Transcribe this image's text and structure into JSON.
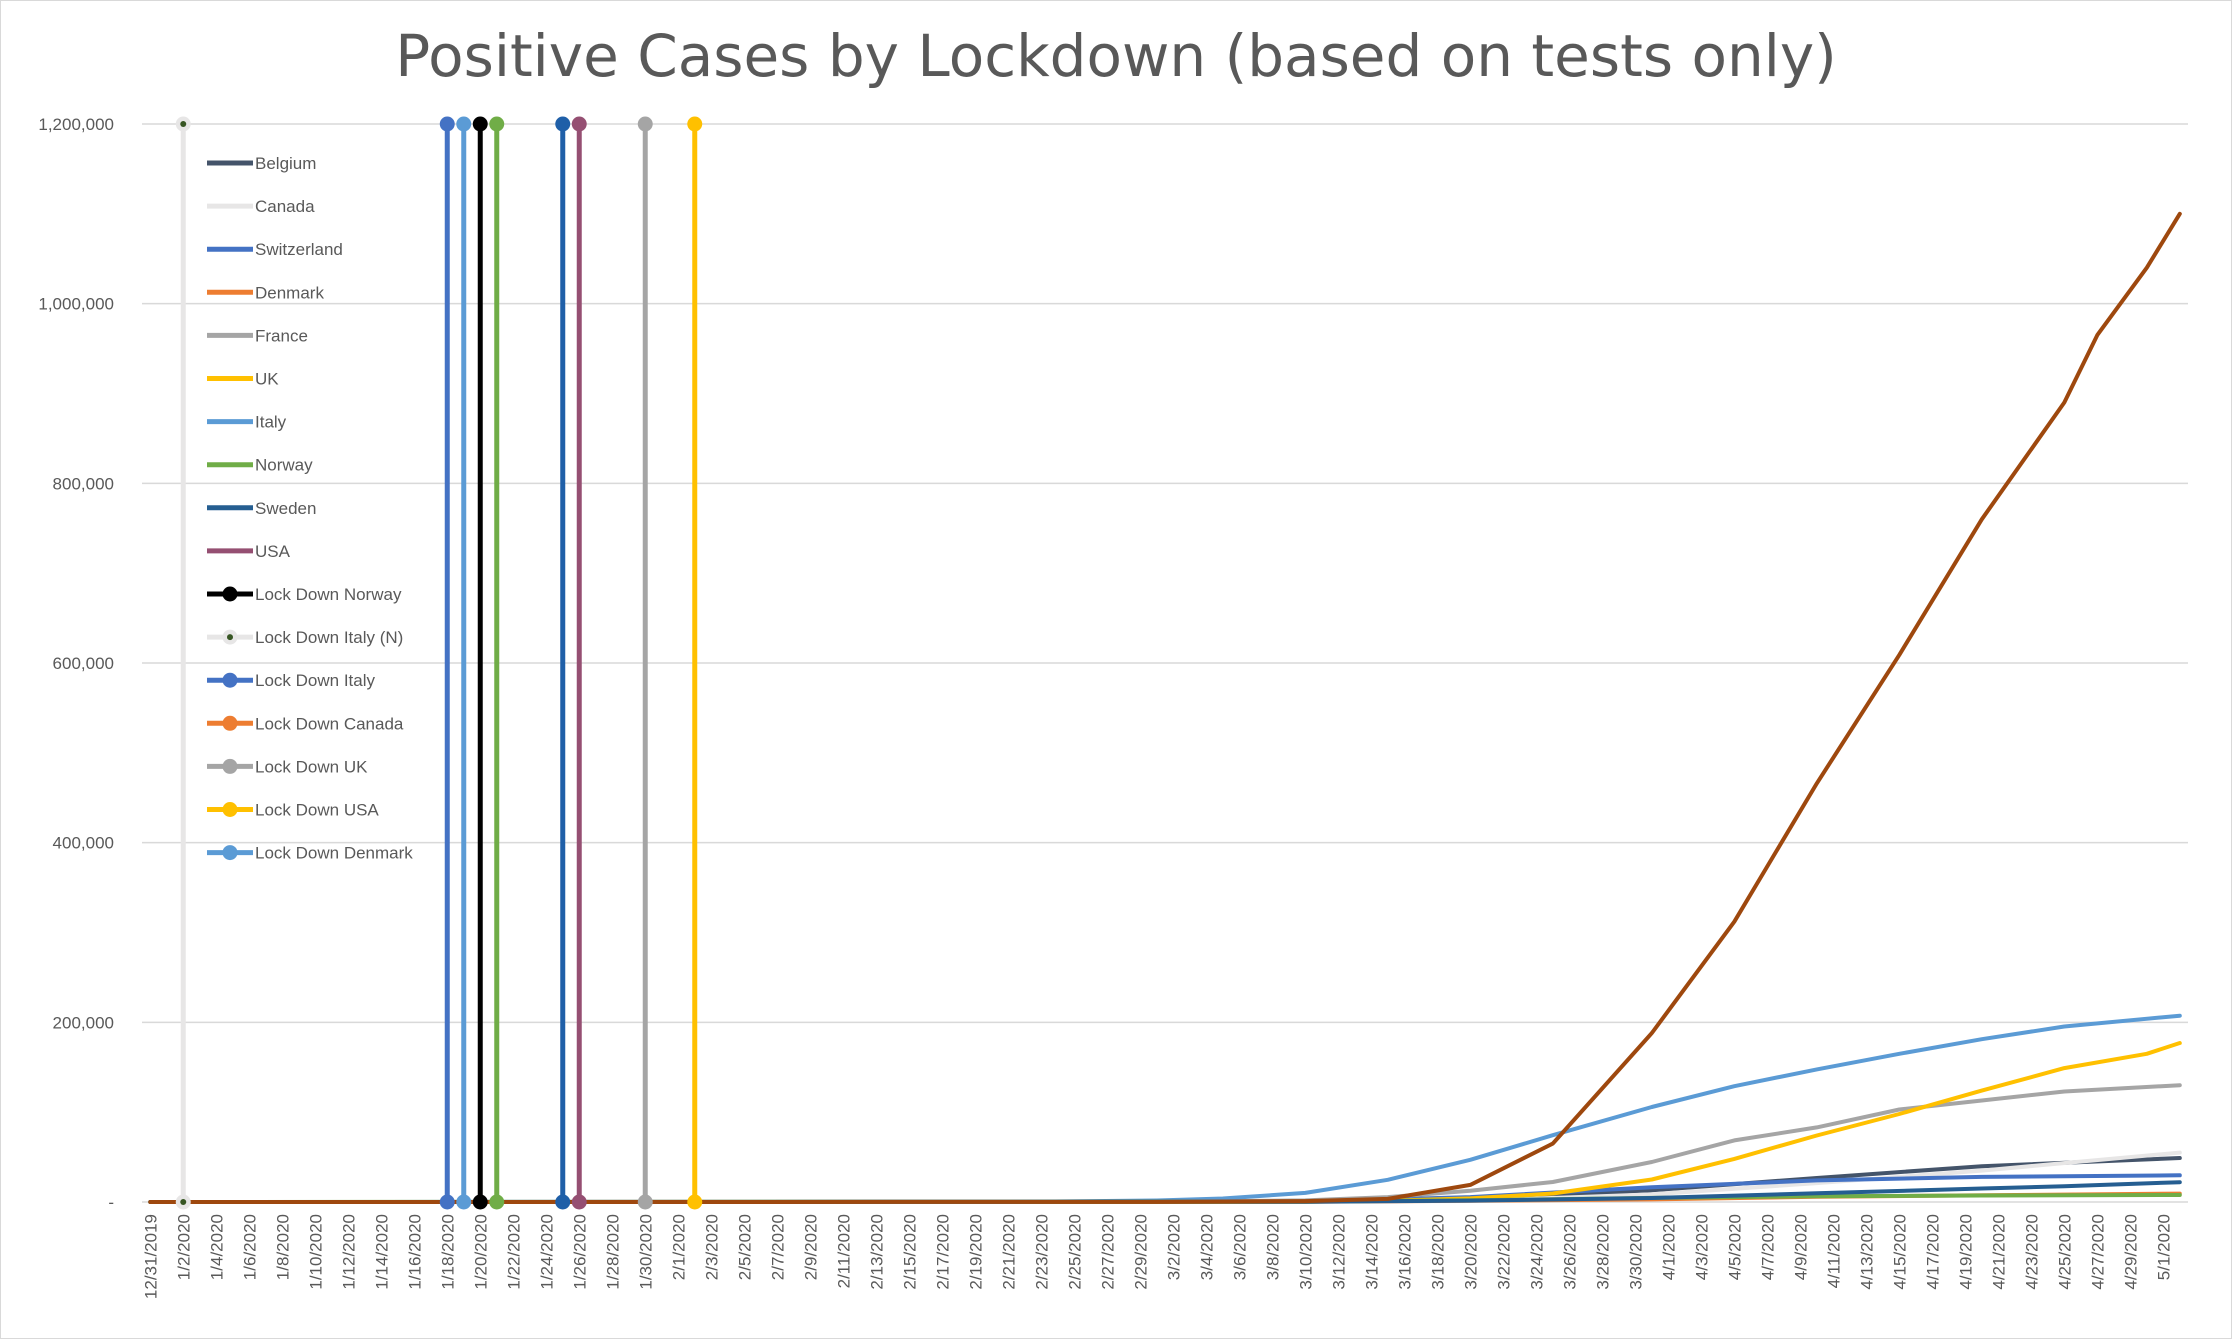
{
  "chart_data": {
    "type": "line",
    "title": "Positive Cases by Lockdown (based on tests only)",
    "xlabel": "",
    "ylabel": "",
    "ylim": [
      0,
      1200000
    ],
    "y_ticks": [
      {
        "value": 0,
        "label": "-"
      },
      {
        "value": 200000,
        "label": "200,000"
      },
      {
        "value": 400000,
        "label": "400,000"
      },
      {
        "value": 600000,
        "label": "600,000"
      },
      {
        "value": 800000,
        "label": "800,000"
      },
      {
        "value": 1000000,
        "label": "1,000,000"
      },
      {
        "value": 1200000,
        "label": "1,200,000"
      }
    ],
    "x_start": "2019-12-31",
    "x_end": "2020-05-02",
    "x_tick_labels": [
      "12/31/2019",
      "1/2/2020",
      "1/4/2020",
      "1/6/2020",
      "1/8/2020",
      "1/10/2020",
      "1/12/2020",
      "1/14/2020",
      "1/16/2020",
      "1/18/2020",
      "1/20/2020",
      "1/22/2020",
      "1/24/2020",
      "1/26/2020",
      "1/28/2020",
      "1/30/2020",
      "2/1/2020",
      "2/3/2020",
      "2/5/2020",
      "2/7/2020",
      "2/9/2020",
      "2/11/2020",
      "2/13/2020",
      "2/15/2020",
      "2/17/2020",
      "2/19/2020",
      "2/21/2020",
      "2/23/2020",
      "2/25/2020",
      "2/27/2020",
      "2/29/2020",
      "3/2/2020",
      "3/4/2020",
      "3/6/2020",
      "3/8/2020",
      "3/10/2020",
      "3/12/2020",
      "3/14/2020",
      "3/16/2020",
      "3/18/2020",
      "3/20/2020",
      "3/22/2020",
      "3/24/2020",
      "3/26/2020",
      "3/28/2020",
      "3/30/2020",
      "4/1/2020",
      "4/3/2020",
      "4/5/2020",
      "4/7/2020",
      "4/9/2020",
      "4/11/2020",
      "4/13/2020",
      "4/15/2020",
      "4/17/2020",
      "4/19/2020",
      "4/21/2020",
      "4/23/2020",
      "4/25/2020",
      "4/27/2020",
      "4/29/2020",
      "5/1/2020"
    ],
    "grid": true,
    "legend_position": "left-inside",
    "series": [
      {
        "name": "Belgium",
        "color": "#44546a",
        "points": [
          [
            "2019-12-31",
            0
          ],
          [
            "2020-03-01",
            0
          ],
          [
            "2020-03-10",
            300
          ],
          [
            "2020-03-20",
            2800
          ],
          [
            "2020-03-31",
            13000
          ],
          [
            "2020-04-10",
            26700
          ],
          [
            "2020-04-20",
            39900
          ],
          [
            "2020-05-02",
            49000
          ]
        ]
      },
      {
        "name": "Canada",
        "color": "#e7e6e6",
        "points": [
          [
            "2019-12-31",
            0
          ],
          [
            "2020-03-10",
            90
          ],
          [
            "2020-03-20",
            1100
          ],
          [
            "2020-03-31",
            8500
          ],
          [
            "2020-04-10",
            21000
          ],
          [
            "2020-04-20",
            35000
          ],
          [
            "2020-05-02",
            55000
          ]
        ]
      },
      {
        "name": "Switzerland",
        "color": "#4472c4",
        "points": [
          [
            "2019-12-31",
            0
          ],
          [
            "2020-03-01",
            30
          ],
          [
            "2020-03-10",
            500
          ],
          [
            "2020-03-20",
            5500
          ],
          [
            "2020-03-31",
            16500
          ],
          [
            "2020-04-10",
            24000
          ],
          [
            "2020-04-20",
            27900
          ],
          [
            "2020-05-02",
            29700
          ]
        ]
      },
      {
        "name": "Denmark",
        "color": "#ed7d31",
        "points": [
          [
            "2019-12-31",
            0
          ],
          [
            "2020-03-10",
            260
          ],
          [
            "2020-03-20",
            1300
          ],
          [
            "2020-03-31",
            2900
          ],
          [
            "2020-04-10",
            5800
          ],
          [
            "2020-04-20",
            7500
          ],
          [
            "2020-05-02",
            9400
          ]
        ]
      },
      {
        "name": "France",
        "color": "#a5a5a5",
        "points": [
          [
            "2019-12-31",
            0
          ],
          [
            "2020-03-01",
            130
          ],
          [
            "2020-03-10",
            1800
          ],
          [
            "2020-03-15",
            5400
          ],
          [
            "2020-03-20",
            12600
          ],
          [
            "2020-03-25",
            22300
          ],
          [
            "2020-03-31",
            44500
          ],
          [
            "2020-04-05",
            68600
          ],
          [
            "2020-04-10",
            83000
          ],
          [
            "2020-04-15",
            103000
          ],
          [
            "2020-04-20",
            113000
          ],
          [
            "2020-04-25",
            123000
          ],
          [
            "2020-05-02",
            130000
          ]
        ]
      },
      {
        "name": "UK",
        "color": "#ffc000",
        "points": [
          [
            "2019-12-31",
            0
          ],
          [
            "2020-03-01",
            36
          ],
          [
            "2020-03-10",
            380
          ],
          [
            "2020-03-15",
            1400
          ],
          [
            "2020-03-20",
            4000
          ],
          [
            "2020-03-25",
            9500
          ],
          [
            "2020-03-31",
            25000
          ],
          [
            "2020-04-05",
            48000
          ],
          [
            "2020-04-10",
            74000
          ],
          [
            "2020-04-15",
            98000
          ],
          [
            "2020-04-20",
            124000
          ],
          [
            "2020-04-25",
            149000
          ],
          [
            "2020-04-30",
            165000
          ],
          [
            "2020-05-02",
            177000
          ]
        ]
      },
      {
        "name": "Italy",
        "color": "#5b9bd5",
        "points": [
          [
            "2019-12-31",
            0
          ],
          [
            "2020-02-21",
            20
          ],
          [
            "2020-03-01",
            1700
          ],
          [
            "2020-03-05",
            3900
          ],
          [
            "2020-03-10",
            10100
          ],
          [
            "2020-03-15",
            24700
          ],
          [
            "2020-03-20",
            47000
          ],
          [
            "2020-03-25",
            74400
          ],
          [
            "2020-03-31",
            105800
          ],
          [
            "2020-04-05",
            128900
          ],
          [
            "2020-04-10",
            147600
          ],
          [
            "2020-04-15",
            165000
          ],
          [
            "2020-04-20",
            181200
          ],
          [
            "2020-04-25",
            195400
          ],
          [
            "2020-05-02",
            207400
          ]
        ]
      },
      {
        "name": "Norway",
        "color": "#70ad47",
        "points": [
          [
            "2019-12-31",
            0
          ],
          [
            "2020-03-10",
            400
          ],
          [
            "2020-03-20",
            1900
          ],
          [
            "2020-03-31",
            4600
          ],
          [
            "2020-04-10",
            6400
          ],
          [
            "2020-04-20",
            7200
          ],
          [
            "2020-05-02",
            7800
          ]
        ]
      },
      {
        "name": "Sweden",
        "color": "#255e91",
        "points": [
          [
            "2019-12-31",
            0
          ],
          [
            "2020-03-10",
            330
          ],
          [
            "2020-03-20",
            1600
          ],
          [
            "2020-03-31",
            4400
          ],
          [
            "2020-04-10",
            9700
          ],
          [
            "2020-04-20",
            15000
          ],
          [
            "2020-04-25",
            17600
          ],
          [
            "2020-05-02",
            22000
          ]
        ]
      },
      {
        "name": "USA",
        "color": "#9e480e",
        "points": [
          [
            "2019-12-31",
            0
          ],
          [
            "2020-03-01",
            70
          ],
          [
            "2020-03-10",
            1000
          ],
          [
            "2020-03-15",
            3500
          ],
          [
            "2020-03-20",
            19000
          ],
          [
            "2020-03-25",
            65000
          ],
          [
            "2020-03-31",
            188000
          ],
          [
            "2020-04-05",
            312000
          ],
          [
            "2020-04-10",
            466000
          ],
          [
            "2020-04-15",
            609000
          ],
          [
            "2020-04-20",
            760000
          ],
          [
            "2020-04-25",
            890000
          ],
          [
            "2020-04-27",
            965000
          ],
          [
            "2020-04-30",
            1040000
          ],
          [
            "2020-05-02",
            1100000
          ]
        ]
      }
    ],
    "lockdowns": [
      {
        "name": "Lock Down Norway",
        "date": "2020-01-20",
        "color": "#000000",
        "value": 1200000,
        "marker_center": "#000000"
      },
      {
        "name": "Lock Down Italy (N)",
        "date": "2020-01-02",
        "color": "#e7e6e6",
        "value": 1200000,
        "marker_center": "#375623"
      },
      {
        "name": "Lock Down Italy",
        "date": "2020-01-18",
        "color": "#4472c4",
        "value": 1200000
      },
      {
        "name": "Lock Down Canada",
        "date": "2020-01-19",
        "color": "#5b9bd5",
        "value": 1200000
      },
      {
        "name": "Lock Down UK",
        "date": "2020-01-30",
        "color": "#a5a5a5",
        "value": 1200000
      },
      {
        "name": "Lock Down USA",
        "date": "2020-02-02",
        "color": "#ffc000",
        "value": 1200000
      },
      {
        "name": "Lock Down Denmark",
        "date": "2020-01-25",
        "color": "#1f5fa8",
        "value": 1200000
      },
      {
        "name": "",
        "date": "2020-01-21",
        "color": "#70ad47",
        "value": 1200000
      },
      {
        "name": "",
        "date": "2020-01-26",
        "color": "#954f72",
        "value": 1200000
      }
    ],
    "legend": [
      {
        "label": "Belgium",
        "color": "#44546a",
        "marker": false
      },
      {
        "label": "Canada",
        "color": "#e7e6e6",
        "marker": false
      },
      {
        "label": "Switzerland",
        "color": "#4472c4",
        "marker": false
      },
      {
        "label": "Denmark",
        "color": "#ed7d31",
        "marker": false
      },
      {
        "label": "France",
        "color": "#a5a5a5",
        "marker": false
      },
      {
        "label": "UK",
        "color": "#ffc000",
        "marker": false
      },
      {
        "label": "Italy",
        "color": "#5b9bd5",
        "marker": false
      },
      {
        "label": "Norway",
        "color": "#70ad47",
        "marker": false
      },
      {
        "label": "Sweden",
        "color": "#255e91",
        "marker": false
      },
      {
        "label": "USA",
        "color": "#954f72",
        "marker": false
      },
      {
        "label": "Lock Down Norway",
        "color": "#000000",
        "marker": true,
        "marker_center": "#000000"
      },
      {
        "label": "Lock Down Italy (N)",
        "color": "#e7e6e6",
        "marker": true,
        "marker_center": "#375623"
      },
      {
        "label": "Lock Down Italy",
        "color": "#4472c4",
        "marker": true
      },
      {
        "label": "Lock Down Canada",
        "color": "#ed7d31",
        "marker": true
      },
      {
        "label": "Lock Down UK",
        "color": "#a5a5a5",
        "marker": true
      },
      {
        "label": "Lock Down USA",
        "color": "#ffc000",
        "marker": true
      },
      {
        "label": "Lock Down Denmark",
        "color": "#5b9bd5",
        "marker": true
      }
    ]
  }
}
